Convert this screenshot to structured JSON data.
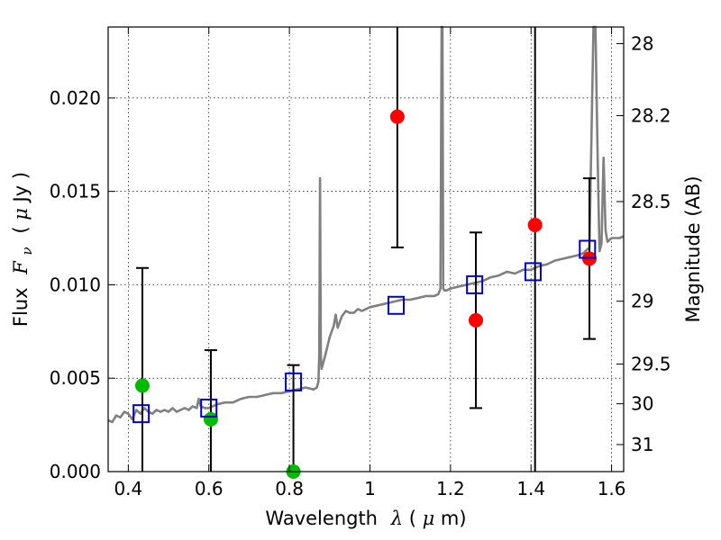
{
  "chart_data": {
    "type": "scatter",
    "xlabel": {
      "prefix": "Wavelength",
      "symbol": "λ",
      "unit_open": " (",
      "unit_symbol": "μ",
      "unit_rest": "m)"
    },
    "ylabel": {
      "prefix": "Flux",
      "symbol": "F",
      "subscript": "ν",
      "unit_open": "( ",
      "unit_symbol": "μ",
      "unit_rest": "Jy )"
    },
    "y2label": "Magnitude (AB)",
    "xlim": [
      0.35,
      1.63
    ],
    "ylim": [
      0.0,
      0.0238
    ],
    "x_ticks": [
      {
        "value": 0.4,
        "label": "0.4"
      },
      {
        "value": 0.6,
        "label": "0.6"
      },
      {
        "value": 0.8,
        "label": "0.8"
      },
      {
        "value": 1.0,
        "label": "1"
      },
      {
        "value": 1.2,
        "label": "1.2"
      },
      {
        "value": 1.4,
        "label": "1.4"
      },
      {
        "value": 1.6,
        "label": "1.6"
      }
    ],
    "y_ticks": [
      {
        "value": 0.0,
        "label": "0.000"
      },
      {
        "value": 0.005,
        "label": "0.005"
      },
      {
        "value": 0.01,
        "label": "0.010"
      },
      {
        "value": 0.015,
        "label": "0.015"
      },
      {
        "value": 0.02,
        "label": "0.020"
      }
    ],
    "y2_ticks": [
      {
        "value": 28.0,
        "label": "28"
      },
      {
        "value": 28.2,
        "label": "28.2"
      },
      {
        "value": 28.5,
        "label": "28.5"
      },
      {
        "value": 29.0,
        "label": "29"
      },
      {
        "value": 29.5,
        "label": "29.5"
      },
      {
        "value": 30.0,
        "label": "30"
      },
      {
        "value": 31.0,
        "label": "31"
      }
    ],
    "grid": true,
    "colors": {
      "template": "#808080",
      "model": "#0000cc",
      "detected": "#ff0000",
      "upper": "#00bb00",
      "errorbar": "#000000"
    },
    "template_spectrum": {
      "x": [
        0.35,
        0.36,
        0.37,
        0.38,
        0.39,
        0.4,
        0.41,
        0.42,
        0.43,
        0.44,
        0.45,
        0.46,
        0.47,
        0.48,
        0.49,
        0.5,
        0.51,
        0.52,
        0.53,
        0.54,
        0.55,
        0.56,
        0.57,
        0.575,
        0.58,
        0.59,
        0.6,
        0.62,
        0.64,
        0.66,
        0.68,
        0.7,
        0.72,
        0.74,
        0.76,
        0.78,
        0.8,
        0.82,
        0.84,
        0.86,
        0.868,
        0.872,
        0.874,
        0.876,
        0.878,
        0.88,
        0.885,
        0.89,
        0.9,
        0.91,
        0.915,
        0.92,
        0.93,
        0.94,
        0.95,
        0.96,
        0.97,
        0.98,
        0.99,
        1.0,
        1.02,
        1.04,
        1.06,
        1.08,
        1.1,
        1.12,
        1.14,
        1.16,
        1.17,
        1.175,
        1.178,
        1.18,
        1.182,
        1.185,
        1.19,
        1.2,
        1.22,
        1.24,
        1.26,
        1.28,
        1.3,
        1.32,
        1.34,
        1.36,
        1.38,
        1.4,
        1.42,
        1.44,
        1.46,
        1.48,
        1.5,
        1.52,
        1.53,
        1.54,
        1.545,
        1.55,
        1.555,
        1.56,
        1.565,
        1.57,
        1.575,
        1.58,
        1.585,
        1.59,
        1.6,
        1.61,
        1.62,
        1.63
      ],
      "y": [
        0.00275,
        0.00265,
        0.003,
        0.0029,
        0.0032,
        0.0031,
        0.0028,
        0.0033,
        0.0031,
        0.0034,
        0.0032,
        0.0031,
        0.0033,
        0.0032,
        0.0033,
        0.0032,
        0.0034,
        0.0032,
        0.0033,
        0.0034,
        0.0033,
        0.0035,
        0.0034,
        0.0039,
        0.0035,
        0.0034,
        0.0034,
        0.0036,
        0.0037,
        0.0037,
        0.0039,
        0.004,
        0.004,
        0.0041,
        0.0042,
        0.0042,
        0.0043,
        0.0044,
        0.0045,
        0.0044,
        0.0045,
        0.0048,
        0.0062,
        0.0157,
        0.0062,
        0.0055,
        0.0059,
        0.0063,
        0.0072,
        0.0078,
        0.0084,
        0.0077,
        0.0083,
        0.0086,
        0.0085,
        0.0085,
        0.0087,
        0.0086,
        0.0087,
        0.0088,
        0.0089,
        0.009,
        0.0091,
        0.0092,
        0.0092,
        0.0093,
        0.0094,
        0.0094,
        0.0095,
        0.0098,
        0.0238,
        0.0238,
        0.0098,
        0.0097,
        0.0097,
        0.0098,
        0.0099,
        0.01,
        0.0101,
        0.0102,
        0.0104,
        0.0105,
        0.0107,
        0.0106,
        0.0108,
        0.0108,
        0.011,
        0.0111,
        0.0113,
        0.0114,
        0.0115,
        0.0116,
        0.0117,
        0.0119,
        0.012,
        0.018,
        0.0238,
        0.0238,
        0.0172,
        0.0118,
        0.0122,
        0.0168,
        0.0129,
        0.0123,
        0.0125,
        0.0125,
        0.0125,
        0.0126
      ]
    },
    "model_fluxes": {
      "x": [
        0.432,
        0.6,
        0.81,
        1.065,
        1.26,
        1.405,
        1.54
      ],
      "y": [
        0.0031,
        0.0034,
        0.0048,
        0.0089,
        0.01,
        0.0107,
        0.0119
      ]
    },
    "detections": {
      "x": [
        1.068,
        1.263,
        1.41,
        1.545
      ],
      "y": [
        0.019,
        0.0081,
        0.0132,
        0.0114
      ],
      "err_low": [
        0.012,
        0.0034,
        0.0,
        0.0071
      ],
      "err_high": [
        0.0238,
        0.0128,
        0.0238,
        0.0157
      ]
    },
    "non_detections": {
      "x": [
        0.435,
        0.605,
        0.81
      ],
      "y": [
        0.0046,
        0.0028,
        0.0
      ],
      "err_low": [
        0.0,
        0.0,
        0.0
      ],
      "err_high": [
        0.0109,
        0.0065,
        0.0057
      ]
    }
  }
}
